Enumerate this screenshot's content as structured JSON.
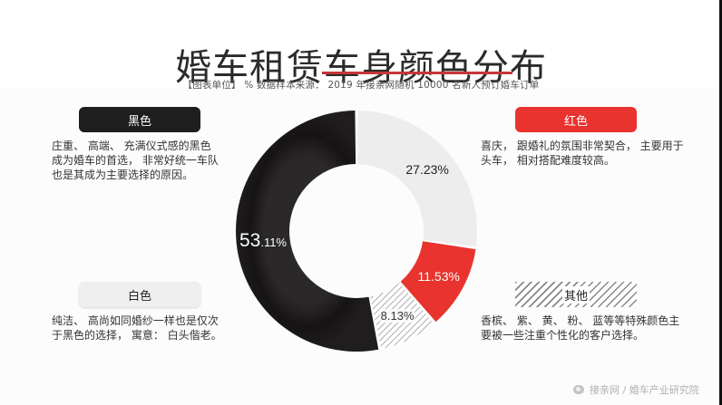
{
  "header": {
    "title": "婚车租赁车身颜色分布",
    "subtitle": "【图表单位】 %  数据样本来源： 2019 年接亲网随机 10000 名新人预订婚车订单"
  },
  "legend": {
    "black": {
      "label": "黑色",
      "description": "庄重、 高端、 充满仪式感的黑色\n成为婚车的首选， 非常好统一车队\n也是其成为主要选择的原因。"
    },
    "red": {
      "label": "红色",
      "description": "喜庆， 跟婚礼的氛围非常契合， 主要用于\n头车， 相对搭配难度较高。"
    },
    "white": {
      "label": "白色",
      "description": "纯洁、 高尚如同婚纱一样也是仅次\n于黑色的选择， 寓意： 白头偕老。"
    },
    "other": {
      "label": "其他",
      "description": "香槟、 紫、 黄、 粉、 蓝等等特殊颜色主\n要被一些注重个性化的客户选择。"
    }
  },
  "colors": {
    "black": "#1c1a1b",
    "white": "#ededee",
    "red": "#e8332e",
    "other_hatch": "#8a8a8a",
    "title_underline": "#c8353a"
  },
  "watermark": {
    "text": "接亲网 / 婚车产业研究院"
  },
  "chart_data": {
    "type": "pie",
    "variant": "donut",
    "title": "婚车租赁车身颜色分布",
    "subtitle": "【图表单位】 %  数据样本来源： 2019 年接亲网随机 10000 名新人预订婚车订单",
    "unit": "%",
    "categories": [
      "白色",
      "红色",
      "其他",
      "黑色"
    ],
    "values": [
      27.23,
      11.53,
      8.13,
      53.11
    ],
    "labels": [
      "27.23%",
      "11.53%",
      "8.13%",
      "53.11%"
    ],
    "label_parts": {
      "black_major": "53",
      "black_minor": ".11%"
    },
    "start_angle_deg": 0,
    "direction": "clockwise",
    "legend_position": "left/right annotation boxes"
  }
}
